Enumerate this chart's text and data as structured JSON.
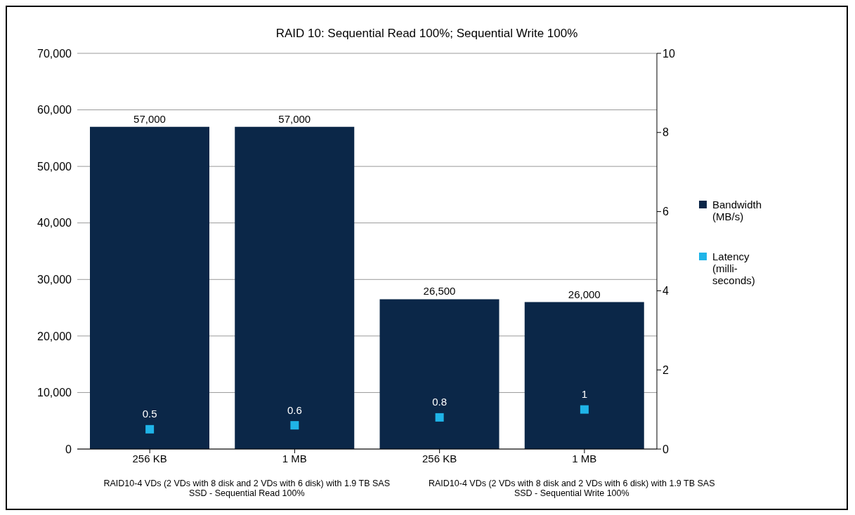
{
  "chart_data": {
    "type": "bar",
    "title": "RAID 10: Sequential Read 100%; Sequential Write 100%",
    "categories": [
      "256 KB",
      "1 MB",
      "256 KB",
      "1 MB"
    ],
    "series": [
      {
        "name": "Bandwidth (MB/s)",
        "color": "#0b2748",
        "values": [
          57000,
          57000,
          26500,
          26000
        ],
        "value_labels": [
          "57,000",
          "57,000",
          "26,500",
          "26,000"
        ]
      },
      {
        "name": "Latency (milli-seconds)",
        "type": "scatter",
        "axis": "y2",
        "marker": "square",
        "color": "#1fb4e8",
        "values": [
          0.5,
          0.6,
          0.8,
          1
        ],
        "value_labels": [
          "0.5",
          "0.6",
          "0.8",
          "1"
        ]
      }
    ],
    "ylim": [
      0,
      70000
    ],
    "yticks": [
      {
        "value": 0,
        "label": "0"
      },
      {
        "value": 10000,
        "label": "10,000"
      },
      {
        "value": 20000,
        "label": "20,000"
      },
      {
        "value": 30000,
        "label": "30,000"
      },
      {
        "value": 40000,
        "label": "40,000"
      },
      {
        "value": 50000,
        "label": "50,000"
      },
      {
        "value": 60000,
        "label": "60,000"
      },
      {
        "value": 70000,
        "label": "70,000"
      }
    ],
    "y2lim": [
      0,
      10
    ],
    "y2ticks": [
      0,
      2,
      4,
      6,
      8,
      10
    ],
    "grid": "y",
    "legend": "right",
    "annotations": [
      "RAID10-4 VDs (2 VDs with 8 disk and 2 VDs with 6 disk) with 1.9 TB SAS SSD - Sequential Read 100%",
      "RAID10-4 VDs (2 VDs with 8 disk and 2 VDs with 6 disk) with 1.9 TB SAS SSD - Sequential Write 100%"
    ]
  }
}
